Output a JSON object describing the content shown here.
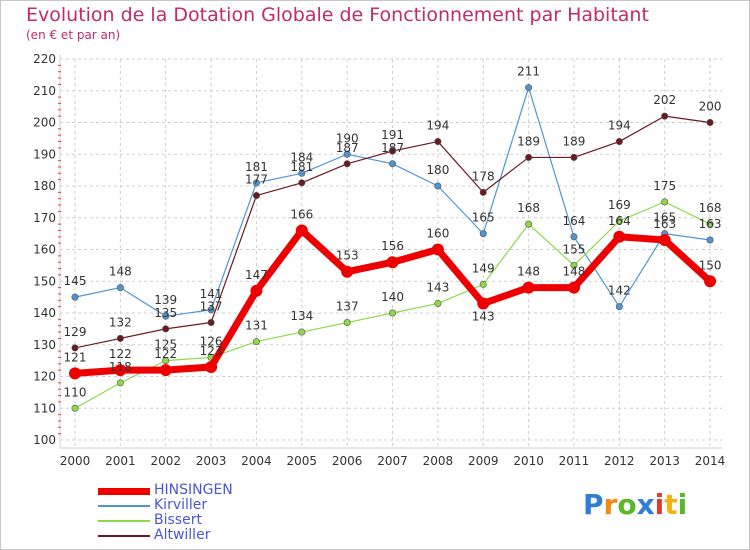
{
  "chart_data": {
    "type": "line",
    "title": "Evolution de la Dotation Globale de Fonctionnement par Habitant",
    "subtitle": "(en € et par an)",
    "xlabel": "",
    "ylabel": "",
    "ylim": [
      100,
      220
    ],
    "yticks": [
      100,
      110,
      120,
      130,
      140,
      150,
      160,
      170,
      180,
      190,
      200,
      210,
      220
    ],
    "grid": true,
    "legend_position": "bottom-left",
    "x": [
      "2000",
      "2001",
      "2002",
      "2003",
      "2004",
      "2005",
      "2006",
      "2007",
      "2008",
      "2009",
      "2010",
      "2011",
      "2012",
      "2013",
      "2014"
    ],
    "series": [
      {
        "name": "HINSINGEN",
        "color": "#ee0000",
        "values": [
          121,
          122,
          122,
          123,
          147,
          166,
          153,
          156,
          160,
          143,
          148,
          148,
          164,
          163,
          150
        ]
      },
      {
        "name": "Kirviller",
        "color": "#4f95d0",
        "values": [
          145,
          148,
          139,
          141,
          181,
          184,
          190,
          187,
          180,
          165,
          211,
          164,
          142,
          165,
          163
        ]
      },
      {
        "name": "Bissert",
        "color": "#8ed84a",
        "values": [
          110,
          118,
          125,
          126,
          131,
          134,
          137,
          140,
          143,
          149,
          168,
          155,
          169,
          175,
          168
        ]
      },
      {
        "name": "Altwiller",
        "color": "#6b1a22",
        "values": [
          129,
          132,
          135,
          137,
          177,
          181,
          187,
          191,
          194,
          178,
          189,
          189,
          194,
          202,
          200
        ]
      }
    ]
  },
  "logo": {
    "letters": [
      "P",
      "r",
      "o",
      "x",
      "i",
      "t",
      "i"
    ],
    "colors": [
      "#2e7fd4",
      "#f08a14",
      "#58b828",
      "#2e7fd4",
      "#e23a2a",
      "#f0b414",
      "#58b828"
    ]
  }
}
